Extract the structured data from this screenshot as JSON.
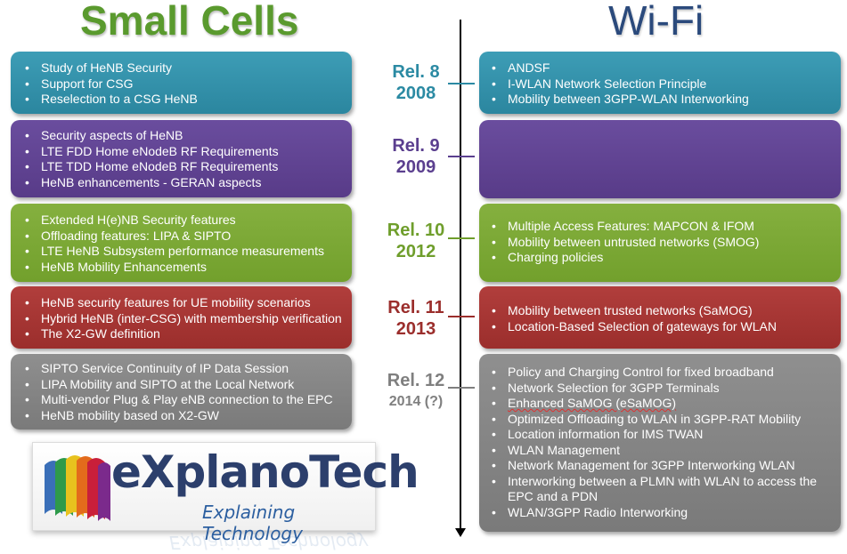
{
  "headers": {
    "small_cells": "Small Cells",
    "wifi": "Wi-Fi"
  },
  "releases": [
    {
      "rel": "Rel. 8",
      "year": "2008",
      "color": "#2b8aa3",
      "small_cells": [
        "Study of HeNB Security",
        "Support for CSG",
        "Reselection to a CSG HeNB"
      ],
      "wifi": [
        "ANDSF",
        "I-WLAN Network Selection Principle",
        "Mobility between 3GPP-WLAN Interworking"
      ]
    },
    {
      "rel": "Rel. 9",
      "year": "2009",
      "color": "#5b3f8f",
      "small_cells": [
        "Security aspects of HeNB",
        "LTE FDD Home eNodeB RF Requirements",
        "LTE TDD Home eNodeB RF Requirements",
        "HeNB enhancements - GERAN aspects"
      ],
      "wifi": []
    },
    {
      "rel": "Rel. 10",
      "year": "2012",
      "color": "#6f9e2c",
      "small_cells": [
        "Extended H(e)NB Security features",
        "Offloading features: LIPA & SIPTO",
        "LTE HeNB Subsystem performance measurements",
        "HeNB Mobility  Enhancements"
      ],
      "wifi": [
        "Multiple Access Features: MAPCON & IFOM",
        "Mobility between untrusted networks (SMOG)",
        "Charging policies"
      ]
    },
    {
      "rel": "Rel. 11",
      "year": "2013",
      "color": "#9b2e2c",
      "small_cells": [
        "HeNB security features for UE mobility scenarios",
        "Hybrid HeNB (inter-CSG) with membership verification",
        "The X2-GW definition"
      ],
      "wifi": [
        "Mobility between trusted networks (SaMOG)",
        "Location-Based Selection of gateways for WLAN"
      ]
    },
    {
      "rel": "Rel. 12",
      "year": "2014 (?)",
      "color": "#7f7f7f",
      "small_cells": [
        "SIPTO Service Continuity of IP Data Session",
        "LIPA Mobility  and SIPTO at the Local Network",
        "Multi-vendor Plug & Play eNB connection to the EPC",
        "HeNB mobility based on X2-GW"
      ],
      "wifi": [
        "Policy and Charging Control for fixed broadband",
        "Network Selection for 3GPP Terminals",
        "Enhanced SaMOG (eSaMOG)",
        "Optimized Offloading to WLAN in 3GPP-RAT Mobility",
        "Location information for IMS TWAN",
        "WLAN Management",
        "Network Management for 3GPP Interworking WLAN",
        "Interworking between a PLMN with WLAN to access the EPC and a PDN",
        "WLAN/3GPP Radio Interworking"
      ]
    }
  ],
  "logo": {
    "name": "eXplanoTech",
    "tagline": "Explaining Technology"
  }
}
